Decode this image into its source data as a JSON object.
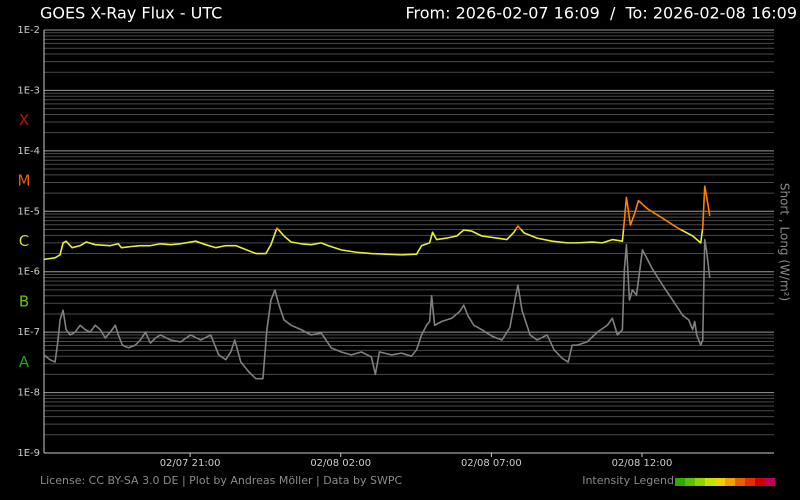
{
  "chart_data": {
    "type": "line",
    "title": "GOES X-Ray Flux - UTC",
    "subtitle": "From: 2026-02-07 16:09  /  To: 2026-02-08 16:09",
    "y_label": "Short , Long (W/m²)",
    "footer": "License: CC BY-SA 3.0 DE | Plot by Andreas Möller | Data by SWPC",
    "legend_label": "Intensity Legend",
    "legend_colors": [
      "#2fa800",
      "#5cbf00",
      "#8fd400",
      "#c8e000",
      "#f0d000",
      "#f0a000",
      "#e86000",
      "#e03000",
      "#d00000",
      "#c00060"
    ],
    "log_y": true,
    "grid": true,
    "minor_grid": true,
    "xlim": [
      "2026-02-07T16:09",
      "2026-02-08T16:09"
    ],
    "xticks": [
      {
        "value": "2026-02-07T21:00",
        "label": "02/07 21:00"
      },
      {
        "value": "2026-02-08T02:00",
        "label": "02/08 02:00"
      },
      {
        "value": "2026-02-08T07:00",
        "label": "02/08 07:00"
      },
      {
        "value": "2026-02-08T12:00",
        "label": "02/08 12:00"
      }
    ],
    "ylim": [
      1e-09,
      0.01
    ],
    "yticks": [
      {
        "value": 1e-09,
        "label": "1E-9"
      },
      {
        "value": 1e-08,
        "label": "1E-8"
      },
      {
        "value": 1e-07,
        "label": "1E-7"
      },
      {
        "value": 1e-06,
        "label": "1E-6"
      },
      {
        "value": 1e-05,
        "label": "1E-5"
      },
      {
        "value": 0.0001,
        "label": "1E-4"
      },
      {
        "value": 0.001,
        "label": "1E-3"
      },
      {
        "value": 0.01,
        "label": "1E-2"
      }
    ],
    "flare_classes": [
      {
        "label": "A",
        "from": 1e-08,
        "color": "#1aa81a"
      },
      {
        "label": "B",
        "from": 1e-07,
        "color": "#66c21a"
      },
      {
        "label": "C",
        "from": 1e-06,
        "color": "#d8d820"
      },
      {
        "label": "M",
        "from": 1e-05,
        "color": "#e86010"
      },
      {
        "label": "X",
        "from": 0.0001,
        "color": "#c01010"
      }
    ],
    "series": [
      {
        "color": "#808080",
        "x": [
          "2026-02-07T16:09",
          "2026-02-07T16:21",
          "2026-02-07T16:31",
          "2026-02-07T16:37",
          "2026-02-07T16:41",
          "2026-02-07T16:47",
          "2026-02-07T16:53",
          "2026-02-07T17:01",
          "2026-02-07T17:11",
          "2026-02-07T17:21",
          "2026-02-07T17:31",
          "2026-02-07T17:41",
          "2026-02-07T17:51",
          "2026-02-07T18:01",
          "2026-02-07T18:11",
          "2026-02-07T18:21",
          "2026-02-07T18:31",
          "2026-02-07T18:37",
          "2026-02-07T18:45",
          "2026-02-07T18:57",
          "2026-02-07T19:11",
          "2026-02-07T19:21",
          "2026-02-07T19:31",
          "2026-02-07T19:41",
          "2026-02-07T19:51",
          "2026-02-07T20:01",
          "2026-02-07T20:21",
          "2026-02-07T20:41",
          "2026-02-07T21:01",
          "2026-02-07T21:21",
          "2026-02-07T21:41",
          "2026-02-07T21:57",
          "2026-02-07T22:11",
          "2026-02-07T22:21",
          "2026-02-07T22:29",
          "2026-02-07T22:41",
          "2026-02-07T22:57",
          "2026-02-07T23:11",
          "2026-02-07T23:25",
          "2026-02-07T23:33",
          "2026-02-07T23:41",
          "2026-02-07T23:49",
          "2026-02-07T23:57",
          "2026-02-08T00:07",
          "2026-02-08T00:21",
          "2026-02-08T00:41",
          "2026-02-08T01:01",
          "2026-02-08T01:21",
          "2026-02-08T01:41",
          "2026-02-08T02:01",
          "2026-02-08T02:21",
          "2026-02-08T02:41",
          "2026-02-08T03:01",
          "2026-02-08T03:09",
          "2026-02-08T03:17",
          "2026-02-08T03:41",
          "2026-02-08T04:01",
          "2026-02-08T04:21",
          "2026-02-08T04:31",
          "2026-02-08T04:41",
          "2026-02-08T04:51",
          "2026-02-08T04:57",
          "2026-02-08T05:01",
          "2026-02-08T05:07",
          "2026-02-08T05:21",
          "2026-02-08T05:41",
          "2026-02-08T05:57",
          "2026-02-08T06:05",
          "2026-02-08T06:13",
          "2026-02-08T06:25",
          "2026-02-08T06:41",
          "2026-02-08T07:01",
          "2026-02-08T07:21",
          "2026-02-08T07:37",
          "2026-02-08T07:47",
          "2026-02-08T07:53",
          "2026-02-08T08:01",
          "2026-02-08T08:17",
          "2026-02-08T08:31",
          "2026-02-08T08:51",
          "2026-02-08T09:05",
          "2026-02-08T09:21",
          "2026-02-08T09:33",
          "2026-02-08T09:41",
          "2026-02-08T09:51",
          "2026-02-08T10:11",
          "2026-02-08T10:31",
          "2026-02-08T10:51",
          "2026-02-08T11:01",
          "2026-02-08T11:11",
          "2026-02-08T11:21",
          "2026-02-08T11:25",
          "2026-02-08T11:29",
          "2026-02-08T11:35",
          "2026-02-08T11:41",
          "2026-02-08T11:49",
          "2026-02-08T12:01",
          "2026-02-08T12:21",
          "2026-02-08T12:41",
          "2026-02-08T13:01",
          "2026-02-08T13:21",
          "2026-02-08T13:33",
          "2026-02-08T13:41",
          "2026-02-08T13:45",
          "2026-02-08T13:49",
          "2026-02-08T13:57",
          "2026-02-08T14:01",
          "2026-02-08T14:05",
          "2026-02-08T14:09",
          "2026-02-08T14:15"
        ],
        "values": [
          4.2e-08,
          3.5e-08,
          3.2e-08,
          7.4e-08,
          1.6e-07,
          2.3e-07,
          1.1e-07,
          9e-08,
          1e-07,
          1.3e-07,
          1.1e-07,
          1e-07,
          1.3e-07,
          1.1e-07,
          8e-08,
          1e-07,
          1.3e-07,
          9e-08,
          6.1e-08,
          5.5e-08,
          6.1e-08,
          7.4e-08,
          1e-07,
          6.6e-08,
          8e-08,
          9e-08,
          7.4e-08,
          6.9e-08,
          9e-08,
          7.4e-08,
          9e-08,
          4.2e-08,
          3.5e-08,
          4.7e-08,
          7.4e-08,
          3.2e-08,
          2.2e-08,
          1.7e-08,
          1.7e-08,
          1.1e-07,
          3.4e-07,
          5e-07,
          2.8e-07,
          1.6e-07,
          1.3e-07,
          1.1e-07,
          9e-08,
          9.7e-08,
          5.5e-08,
          4.7e-08,
          4.2e-08,
          4.7e-08,
          3.9e-08,
          2e-08,
          4.7e-08,
          4.2e-08,
          4.5e-08,
          4e-08,
          5.1e-08,
          9e-08,
          1.3e-07,
          1.5e-07,
          4e-07,
          1.3e-07,
          1.5e-07,
          1.7e-07,
          2.2e-07,
          2.8e-07,
          1.9e-07,
          1.3e-07,
          1.1e-07,
          8.6e-08,
          7.4e-08,
          1.2e-07,
          3.4e-07,
          6e-07,
          2.3e-07,
          9e-08,
          7.4e-08,
          9e-08,
          5.1e-08,
          3.7e-08,
          3.2e-08,
          6.1e-08,
          6.1e-08,
          6.9e-08,
          1e-07,
          1.3e-07,
          1.7e-07,
          9e-08,
          1.1e-07,
          1.1e-06,
          2.8e-06,
          3.4e-07,
          5e-07,
          4.1e-07,
          2.3e-06,
          1.1e-06,
          6e-07,
          3.4e-07,
          1.9e-07,
          1.6e-07,
          1.1e-07,
          1.5e-07,
          9e-08,
          6.1e-08,
          7.4e-08,
          3.4e-06,
          2.1e-06,
          7.9e-07
        ]
      },
      {
        "color": "#e6f032",
        "high_color": "#ff7f00",
        "high_from": 5e-06,
        "x": [
          "2026-02-07T16:09",
          "2026-02-07T16:31",
          "2026-02-07T16:41",
          "2026-02-07T16:47",
          "2026-02-07T16:53",
          "2026-02-07T17:05",
          "2026-02-07T17:21",
          "2026-02-07T17:33",
          "2026-02-07T17:51",
          "2026-02-07T18:21",
          "2026-02-07T18:37",
          "2026-02-07T18:43",
          "2026-02-07T19:01",
          "2026-02-07T19:21",
          "2026-02-07T19:41",
          "2026-02-07T20:01",
          "2026-02-07T20:21",
          "2026-02-07T20:41",
          "2026-02-07T21:11",
          "2026-02-07T21:31",
          "2026-02-07T21:51",
          "2026-02-07T22:11",
          "2026-02-07T22:31",
          "2026-02-07T22:41",
          "2026-02-07T23:11",
          "2026-02-07T23:31",
          "2026-02-07T23:41",
          "2026-02-07T23:53",
          "2026-02-08T00:07",
          "2026-02-08T00:21",
          "2026-02-08T00:41",
          "2026-02-08T01:01",
          "2026-02-08T01:21",
          "2026-02-08T01:35",
          "2026-02-08T02:01",
          "2026-02-08T02:31",
          "2026-02-08T03:01",
          "2026-02-08T03:31",
          "2026-02-08T04:01",
          "2026-02-08T04:31",
          "2026-02-08T04:41",
          "2026-02-08T04:57",
          "2026-02-08T05:03",
          "2026-02-08T05:11",
          "2026-02-08T05:31",
          "2026-02-08T05:51",
          "2026-02-08T06:05",
          "2026-02-08T06:21",
          "2026-02-08T06:41",
          "2026-02-08T07:11",
          "2026-02-08T07:31",
          "2026-02-08T07:45",
          "2026-02-08T07:53",
          "2026-02-08T08:05",
          "2026-02-08T08:31",
          "2026-02-08T09:01",
          "2026-02-08T09:31",
          "2026-02-08T09:51",
          "2026-02-08T10:21",
          "2026-02-08T10:41",
          "2026-02-08T11:01",
          "2026-02-08T11:21",
          "2026-02-08T11:25",
          "2026-02-08T11:29",
          "2026-02-08T11:37",
          "2026-02-08T11:45",
          "2026-02-08T11:53",
          "2026-02-08T12:11",
          "2026-02-08T12:41",
          "2026-02-08T13:11",
          "2026-02-08T13:41",
          "2026-02-08T13:57",
          "2026-02-08T14:01",
          "2026-02-08T14:05",
          "2026-02-08T14:09",
          "2026-02-08T14:15"
        ],
        "values": [
          1.6e-06,
          1.7e-06,
          1.9e-06,
          3e-06,
          3.2e-06,
          2.5e-06,
          2.7e-06,
          3.1e-06,
          2.8e-06,
          2.7e-06,
          2.9e-06,
          2.5e-06,
          2.6e-06,
          2.7e-06,
          2.7e-06,
          2.9e-06,
          2.8e-06,
          2.9e-06,
          3.2e-06,
          2.8e-06,
          2.5e-06,
          2.7e-06,
          2.7e-06,
          2.5e-06,
          2e-06,
          2e-06,
          2.8e-06,
          5.3e-06,
          3.9e-06,
          3.1e-06,
          2.9e-06,
          2.8e-06,
          3e-06,
          2.7e-06,
          2.3e-06,
          2.1e-06,
          2e-06,
          1.95e-06,
          1.9e-06,
          1.95e-06,
          2.7e-06,
          3e-06,
          4.5e-06,
          3.4e-06,
          3.6e-06,
          3.9e-06,
          4.9e-06,
          4.7e-06,
          3.9e-06,
          3.6e-06,
          3.4e-06,
          4.5e-06,
          5.7e-06,
          4.4e-06,
          3.6e-06,
          3.2e-06,
          3e-06,
          3e-06,
          3.1e-06,
          3e-06,
          3.4e-06,
          3.2e-06,
          7.2e-06,
          1.7e-05,
          5.9e-06,
          9e-06,
          1.5e-05,
          1.1e-05,
          7.7e-06,
          5.3e-06,
          3.9e-06,
          3e-06,
          5.3e-06,
          2.6e-05,
          1.7e-05,
          8.4e-06
        ]
      }
    ]
  }
}
